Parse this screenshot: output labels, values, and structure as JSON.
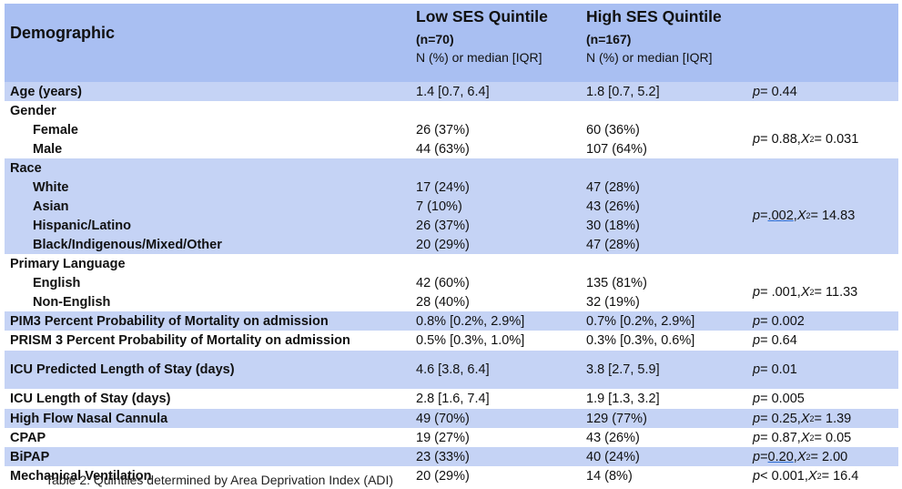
{
  "header": {
    "demographic": "Demographic",
    "low": {
      "title": "Low SES Quintile",
      "n": "(n=70)",
      "sub": "N (%) or median [IQR]"
    },
    "high": {
      "title": "High SES Quintile",
      "n": "(n=167)",
      "sub": "N (%) or median [IQR]"
    }
  },
  "rows": {
    "age": {
      "label": "Age (years)",
      "low": "1.4 [0.7, 6.4]",
      "high": "1.8 [0.7, 5.2]",
      "p": "p",
      "stat": " = 0.44"
    },
    "gender": {
      "label": "Gender"
    },
    "female": {
      "label": "Female",
      "low": "26 (37%)",
      "high": "60 (36%)"
    },
    "male": {
      "label": "Male",
      "low": "44 (63%)",
      "high": "107 (64%)"
    },
    "gender_stat": {
      "p": "p",
      "stat": " = 0.88, ",
      "chi": "X",
      "sup": "2",
      "stat2": " = 0.031"
    },
    "race": {
      "label": "Race"
    },
    "white": {
      "label": "White",
      "low": "17 (24%)",
      "high": "47 (28%)"
    },
    "asian": {
      "label": "Asian",
      "low": "7 (10%)",
      "high": "43 (26%)"
    },
    "hispanic": {
      "label": "Hispanic/Latino",
      "low": "26 (37%)",
      "high": "30 (18%)"
    },
    "black": {
      "label": "Black/Indigenous/Mixed/Other",
      "low": "20 (29%)",
      "high": "47 (28%)"
    },
    "race_stat": {
      "p": "p",
      "eq": " = ",
      "val": ".002 ",
      "sep": ", ",
      "chi": "X",
      "sup": "2",
      "stat2": " = 14.83"
    },
    "language": {
      "label": "Primary Language"
    },
    "english": {
      "label": "English",
      "low": "42 (60%)",
      "high": "135 (81%)"
    },
    "nonenglish": {
      "label": "Non-English",
      "low": "28 (40%)",
      "high": "32 (19%)"
    },
    "language_stat": {
      "p": "p",
      "stat": " = .001, ",
      "chi": "X",
      "sup": "2",
      "stat2": " = 11.33"
    },
    "pim3": {
      "label": "PIM3 Percent Probability of Mortality on admission",
      "low": "0.8% [0.2%, 2.9%]",
      "high": "0.7% [0.2%, 2.9%]",
      "p": "p",
      "stat": " = 0.002"
    },
    "prism3": {
      "label": "PRISM 3 Percent Probability of Mortality on admission",
      "low": "0.5% [0.3%, 1.0%]",
      "high": "0.3% [0.3%, 0.6%]",
      "p": "p",
      "stat": " = 0.64"
    },
    "icu_pred": {
      "label": "ICU Predicted Length of Stay (days)",
      "low": "4.6 [3.8, 6.4]",
      "high": "3.8 [2.7, 5.9]",
      "p": "p",
      "stat": " = 0.01"
    },
    "icu_los": {
      "label": "ICU Length of Stay (days)",
      "low": "2.8 [1.6, 7.4]",
      "high": "1.9 [1.3, 3.2]",
      "p": "p",
      "stat": " = 0.005"
    },
    "hfnc": {
      "label": "High Flow Nasal Cannula",
      "low": "49 (70%)",
      "high": "129 (77%)",
      "p": "p",
      "stat": " = 0.25, ",
      "chi": "X",
      "sup": "2",
      "stat2": " = 1.39"
    },
    "cpap": {
      "label": "CPAP",
      "low": "19 (27%)",
      "high": "43 (26%)",
      "p": "p",
      "stat": " = 0.87, ",
      "chi": "X",
      "sup": "2",
      "stat2": " = 0.05"
    },
    "bipap": {
      "label": "BiPAP",
      "low": "23 (33%)",
      "high": "40 (24%)",
      "p": "p",
      "eq": " = ",
      "val": "0.20 ",
      "sep": ", ",
      "chi": "X",
      "sup": "2",
      "stat2": " = 2.00"
    },
    "mechvent": {
      "label": "Mechanical Ventilation",
      "low": "20 (29%)",
      "high": "14 (8%)",
      "p": "p",
      "stat": " < 0.001, ",
      "chi": "X",
      "sup": "2",
      "stat2": " = 16.4"
    }
  },
  "caption": "Table 2: Quintiles determined by Area Deprivation Index (ADI)",
  "colors": {
    "header": "#a9bff2",
    "shade": "#c5d3f5"
  }
}
